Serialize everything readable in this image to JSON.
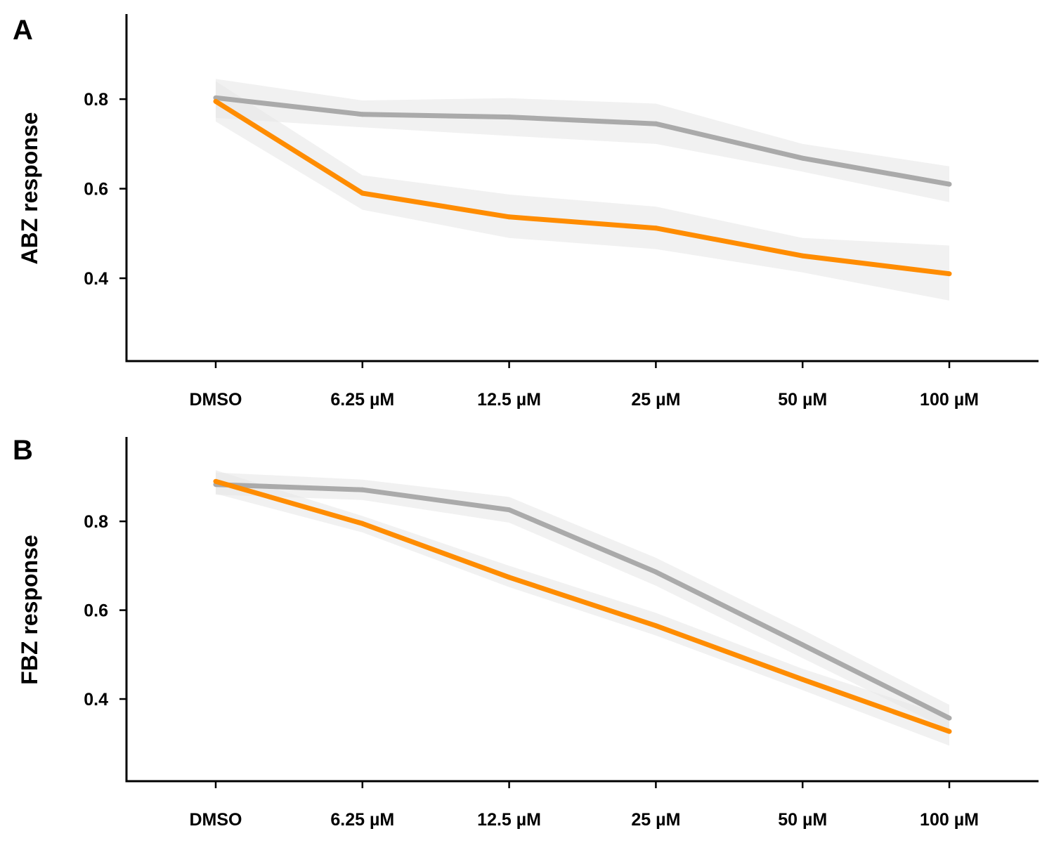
{
  "colors": {
    "treated": "#FF8C00",
    "control": "#AAAAAA",
    "band": "#E8E8E8"
  },
  "chart_data": [
    {
      "type": "line",
      "panel": "A",
      "ylabel": "ABZ response",
      "xlabel": "",
      "categories": [
        "DMSO",
        "6.25 µM",
        "12.5 µM",
        "25 µM",
        "50 µM",
        "100 µM"
      ],
      "ylim": [
        0.215,
        0.99
      ],
      "yticks": [
        0.4,
        0.6,
        0.8
      ],
      "ytick_labels": [
        "0.4",
        "0.6",
        "0.8"
      ],
      "grid": false,
      "series": [
        {
          "color_key": "control",
          "values": [
            0.803,
            0.766,
            0.76,
            0.745,
            0.668,
            0.61
          ],
          "lower": [
            0.758,
            0.737,
            0.718,
            0.7,
            0.638,
            0.57
          ],
          "upper": [
            0.845,
            0.797,
            0.802,
            0.79,
            0.7,
            0.65
          ]
        },
        {
          "color_key": "treated",
          "values": [
            0.795,
            0.59,
            0.537,
            0.512,
            0.45,
            0.41
          ],
          "lower": [
            0.75,
            0.553,
            0.49,
            0.465,
            0.413,
            0.35
          ],
          "upper": [
            0.84,
            0.63,
            0.587,
            0.56,
            0.49,
            0.473
          ]
        }
      ]
    },
    {
      "type": "line",
      "panel": "B",
      "ylabel": "FBZ response",
      "xlabel": "",
      "categories": [
        "DMSO",
        "6.25 µM",
        "12.5 µM",
        "25 µM",
        "50 µM",
        "100 µM"
      ],
      "ylim": [
        0.215,
        0.99
      ],
      "yticks": [
        0.4,
        0.6,
        0.8
      ],
      "ytick_labels": [
        "0.4",
        "0.6",
        "0.8"
      ],
      "grid": false,
      "series": [
        {
          "color_key": "control",
          "values": [
            0.883,
            0.871,
            0.826,
            0.686,
            0.522,
            0.357
          ],
          "lower": [
            0.86,
            0.848,
            0.797,
            0.655,
            0.492,
            0.33
          ],
          "upper": [
            0.91,
            0.894,
            0.855,
            0.718,
            0.556,
            0.387
          ]
        },
        {
          "color_key": "treated",
          "values": [
            0.89,
            0.795,
            0.674,
            0.565,
            0.444,
            0.327
          ],
          "lower": [
            0.862,
            0.775,
            0.652,
            0.543,
            0.42,
            0.295
          ],
          "upper": [
            0.915,
            0.812,
            0.7,
            0.594,
            0.468,
            0.36
          ]
        }
      ]
    }
  ]
}
